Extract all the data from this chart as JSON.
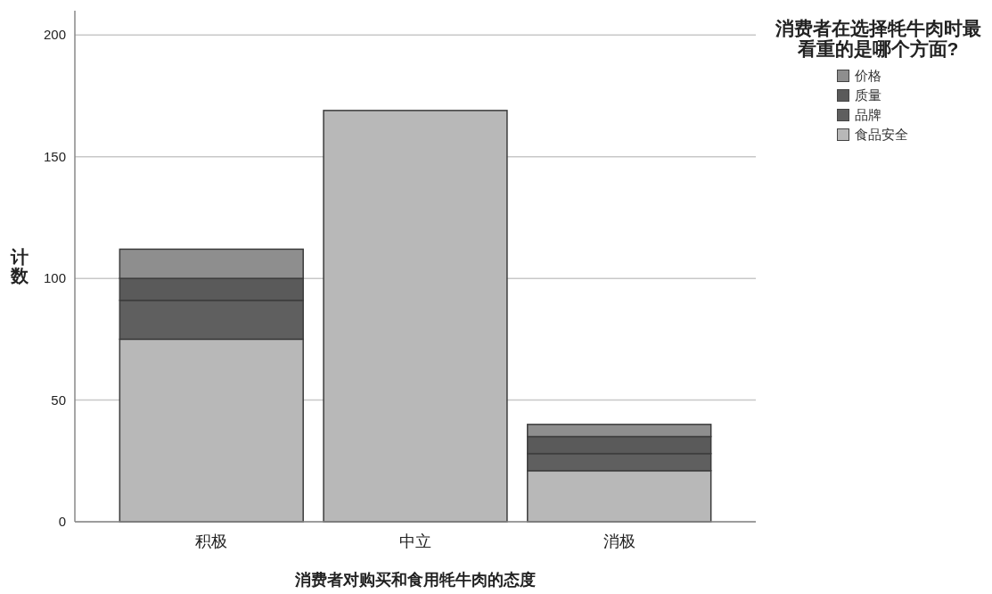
{
  "chart_data": {
    "type": "bar",
    "stacked": true,
    "categories": [
      "积极",
      "中立",
      "消极"
    ],
    "series": [
      {
        "name": "食品安全",
        "color": "#b8b8b8",
        "values": [
          75,
          169,
          21
        ]
      },
      {
        "name": "品牌",
        "color": "#5f5f5f",
        "values": [
          16,
          0,
          7
        ]
      },
      {
        "name": "质量",
        "color": "#5a5a5a",
        "values": [
          9,
          0,
          7
        ]
      },
      {
        "name": "价格",
        "color": "#8e8e8e",
        "values": [
          12,
          0,
          5
        ]
      }
    ],
    "xlabel": "消费者对购买和食用牦牛肉的态度",
    "ylabel": "计数",
    "legend_title": "消费者在选择牦牛肉时最看重的是哪个方面?",
    "ylim": [
      0,
      210
    ],
    "yticks": [
      0,
      50,
      100,
      150,
      200
    ],
    "grid": "y",
    "legend": "top right"
  }
}
